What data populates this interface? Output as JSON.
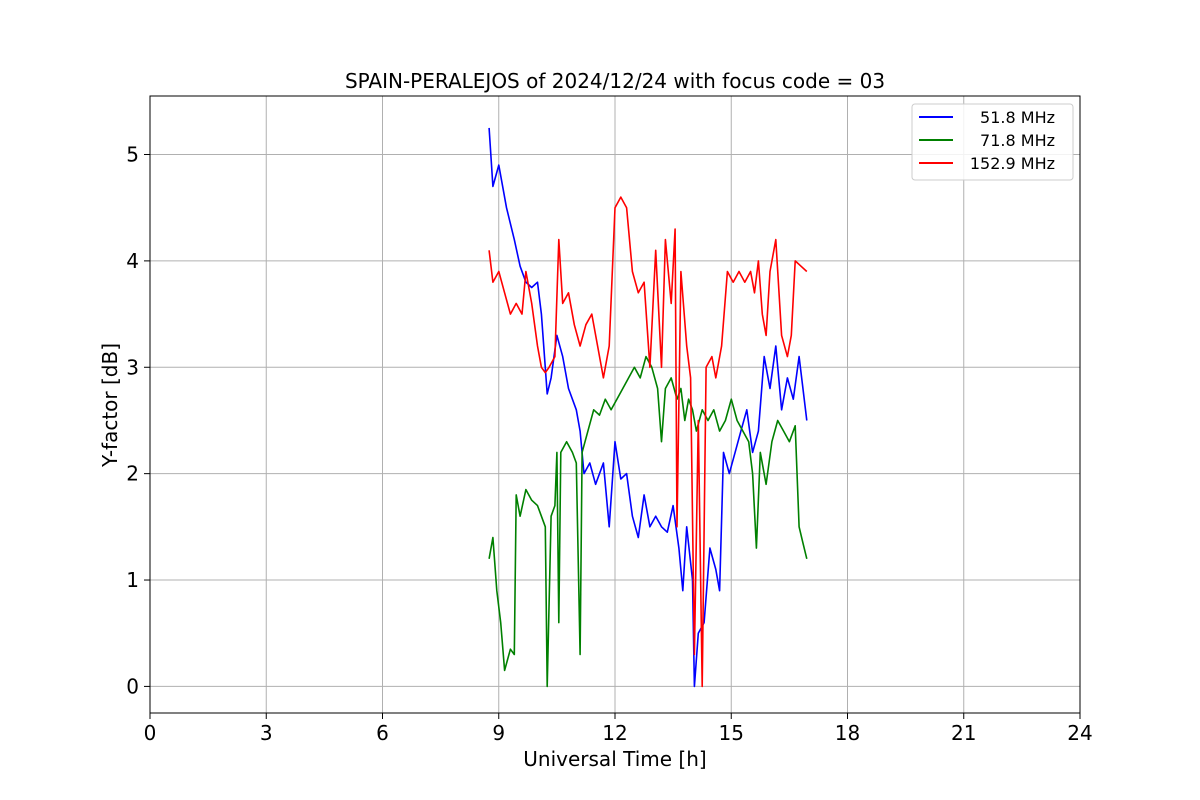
{
  "chart_data": {
    "type": "line",
    "title": "SPAIN-PERALEJOS of 2024/12/24 with focus code = 03",
    "xlabel": "Universal Time [h]",
    "ylabel": "Y-factor [dB]",
    "xlim": [
      0,
      24
    ],
    "ylim": [
      -0.25,
      5.55
    ],
    "xticks": [
      "0",
      "3",
      "6",
      "9",
      "12",
      "15",
      "18",
      "21",
      "24"
    ],
    "yticks": [
      "0",
      "1",
      "2",
      "3",
      "4",
      "5"
    ],
    "grid": true,
    "legend_position": "top-right",
    "series": [
      {
        "name": "51.8 MHz",
        "color": "#0000ff",
        "points": [
          [
            8.75,
            5.25
          ],
          [
            8.85,
            4.7
          ],
          [
            9.0,
            4.9
          ],
          [
            9.2,
            4.5
          ],
          [
            9.4,
            4.2
          ],
          [
            9.55,
            3.95
          ],
          [
            9.7,
            3.8
          ],
          [
            9.85,
            3.75
          ],
          [
            10.0,
            3.8
          ],
          [
            10.1,
            3.5
          ],
          [
            10.25,
            2.75
          ],
          [
            10.35,
            2.9
          ],
          [
            10.5,
            3.3
          ],
          [
            10.65,
            3.1
          ],
          [
            10.8,
            2.8
          ],
          [
            11.0,
            2.6
          ],
          [
            11.1,
            2.4
          ],
          [
            11.2,
            2.0
          ],
          [
            11.35,
            2.1
          ],
          [
            11.5,
            1.9
          ],
          [
            11.7,
            2.1
          ],
          [
            11.85,
            1.5
          ],
          [
            12.0,
            2.3
          ],
          [
            12.15,
            1.95
          ],
          [
            12.3,
            2.0
          ],
          [
            12.45,
            1.6
          ],
          [
            12.6,
            1.4
          ],
          [
            12.75,
            1.8
          ],
          [
            12.9,
            1.5
          ],
          [
            13.05,
            1.6
          ],
          [
            13.2,
            1.5
          ],
          [
            13.35,
            1.45
          ],
          [
            13.5,
            1.7
          ],
          [
            13.65,
            1.3
          ],
          [
            13.75,
            0.9
          ],
          [
            13.85,
            1.5
          ],
          [
            14.0,
            1.0
          ],
          [
            14.05,
            0.0
          ],
          [
            14.15,
            0.5
          ],
          [
            14.3,
            0.6
          ],
          [
            14.45,
            1.3
          ],
          [
            14.6,
            1.1
          ],
          [
            14.7,
            0.9
          ],
          [
            14.8,
            2.2
          ],
          [
            14.95,
            2.0
          ],
          [
            15.1,
            2.2
          ],
          [
            15.25,
            2.4
          ],
          [
            15.4,
            2.6
          ],
          [
            15.55,
            2.2
          ],
          [
            15.7,
            2.4
          ],
          [
            15.85,
            3.1
          ],
          [
            16.0,
            2.8
          ],
          [
            16.15,
            3.2
          ],
          [
            16.3,
            2.6
          ],
          [
            16.45,
            2.9
          ],
          [
            16.6,
            2.7
          ],
          [
            16.75,
            3.1
          ],
          [
            16.95,
            2.5
          ]
        ]
      },
      {
        "name": "71.8 MHz",
        "color": "#008000",
        "points": [
          [
            8.75,
            1.2
          ],
          [
            8.85,
            1.4
          ],
          [
            8.95,
            0.9
          ],
          [
            9.05,
            0.6
          ],
          [
            9.15,
            0.15
          ],
          [
            9.3,
            0.35
          ],
          [
            9.4,
            0.3
          ],
          [
            9.45,
            1.8
          ],
          [
            9.55,
            1.6
          ],
          [
            9.7,
            1.85
          ],
          [
            9.85,
            1.75
          ],
          [
            10.0,
            1.7
          ],
          [
            10.1,
            1.6
          ],
          [
            10.2,
            1.5
          ],
          [
            10.25,
            0.0
          ],
          [
            10.35,
            1.6
          ],
          [
            10.45,
            1.7
          ],
          [
            10.5,
            2.2
          ],
          [
            10.55,
            0.6
          ],
          [
            10.6,
            2.2
          ],
          [
            10.75,
            2.3
          ],
          [
            10.9,
            2.2
          ],
          [
            11.0,
            2.1
          ],
          [
            11.1,
            0.3
          ],
          [
            11.15,
            2.2
          ],
          [
            11.3,
            2.4
          ],
          [
            11.45,
            2.6
          ],
          [
            11.6,
            2.55
          ],
          [
            11.75,
            2.7
          ],
          [
            11.9,
            2.6
          ],
          [
            12.05,
            2.7
          ],
          [
            12.2,
            2.8
          ],
          [
            12.35,
            2.9
          ],
          [
            12.5,
            3.0
          ],
          [
            12.65,
            2.9
          ],
          [
            12.8,
            3.1
          ],
          [
            12.95,
            3.0
          ],
          [
            13.1,
            2.8
          ],
          [
            13.2,
            2.3
          ],
          [
            13.3,
            2.8
          ],
          [
            13.45,
            2.9
          ],
          [
            13.6,
            2.7
          ],
          [
            13.7,
            2.8
          ],
          [
            13.8,
            2.5
          ],
          [
            13.9,
            2.7
          ],
          [
            14.0,
            2.6
          ],
          [
            14.1,
            2.4
          ],
          [
            14.25,
            2.6
          ],
          [
            14.4,
            2.5
          ],
          [
            14.55,
            2.6
          ],
          [
            14.7,
            2.4
          ],
          [
            14.85,
            2.5
          ],
          [
            15.0,
            2.7
          ],
          [
            15.15,
            2.5
          ],
          [
            15.3,
            2.4
          ],
          [
            15.45,
            2.3
          ],
          [
            15.55,
            2.0
          ],
          [
            15.65,
            1.3
          ],
          [
            15.75,
            2.2
          ],
          [
            15.9,
            1.9
          ],
          [
            16.05,
            2.3
          ],
          [
            16.2,
            2.5
          ],
          [
            16.35,
            2.4
          ],
          [
            16.5,
            2.3
          ],
          [
            16.65,
            2.45
          ],
          [
            16.75,
            1.5
          ],
          [
            16.85,
            1.35
          ],
          [
            16.95,
            1.2
          ]
        ]
      },
      {
        "name": "152.9 MHz",
        "color": "#ff0000",
        "points": [
          [
            8.75,
            4.1
          ],
          [
            8.85,
            3.8
          ],
          [
            9.0,
            3.9
          ],
          [
            9.15,
            3.7
          ],
          [
            9.3,
            3.5
          ],
          [
            9.45,
            3.6
          ],
          [
            9.6,
            3.5
          ],
          [
            9.7,
            3.9
          ],
          [
            9.85,
            3.6
          ],
          [
            10.0,
            3.2
          ],
          [
            10.1,
            3.0
          ],
          [
            10.2,
            2.95
          ],
          [
            10.3,
            3.0
          ],
          [
            10.45,
            3.1
          ],
          [
            10.55,
            4.2
          ],
          [
            10.65,
            3.6
          ],
          [
            10.8,
            3.7
          ],
          [
            10.95,
            3.4
          ],
          [
            11.1,
            3.2
          ],
          [
            11.25,
            3.4
          ],
          [
            11.4,
            3.5
          ],
          [
            11.55,
            3.2
          ],
          [
            11.7,
            2.9
          ],
          [
            11.85,
            3.2
          ],
          [
            12.0,
            4.5
          ],
          [
            12.15,
            4.6
          ],
          [
            12.3,
            4.5
          ],
          [
            12.45,
            3.9
          ],
          [
            12.6,
            3.7
          ],
          [
            12.75,
            3.8
          ],
          [
            12.9,
            3.0
          ],
          [
            13.05,
            4.1
          ],
          [
            13.2,
            3.0
          ],
          [
            13.3,
            4.2
          ],
          [
            13.45,
            3.6
          ],
          [
            13.55,
            4.3
          ],
          [
            13.6,
            1.5
          ],
          [
            13.7,
            3.9
          ],
          [
            13.85,
            3.2
          ],
          [
            13.95,
            2.9
          ],
          [
            14.05,
            0.3
          ],
          [
            14.15,
            2.5
          ],
          [
            14.25,
            0.0
          ],
          [
            14.35,
            3.0
          ],
          [
            14.5,
            3.1
          ],
          [
            14.6,
            2.9
          ],
          [
            14.75,
            3.2
          ],
          [
            14.9,
            3.9
          ],
          [
            15.05,
            3.8
          ],
          [
            15.2,
            3.9
          ],
          [
            15.35,
            3.8
          ],
          [
            15.5,
            3.9
          ],
          [
            15.6,
            3.7
          ],
          [
            15.7,
            4.0
          ],
          [
            15.8,
            3.5
          ],
          [
            15.9,
            3.3
          ],
          [
            16.0,
            3.9
          ],
          [
            16.15,
            4.2
          ],
          [
            16.3,
            3.3
          ],
          [
            16.45,
            3.1
          ],
          [
            16.55,
            3.3
          ],
          [
            16.65,
            4.0
          ],
          [
            16.8,
            3.95
          ],
          [
            16.95,
            3.9
          ]
        ]
      }
    ]
  }
}
